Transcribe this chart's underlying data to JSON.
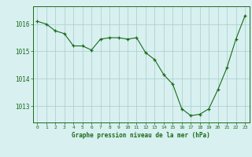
{
  "hours": [
    0,
    1,
    2,
    3,
    4,
    5,
    6,
    7,
    8,
    9,
    10,
    11,
    12,
    13,
    14,
    15,
    16,
    17,
    18,
    19,
    20,
    21,
    22,
    23
  ],
  "pressure": [
    1016.1,
    1016.0,
    1015.75,
    1015.65,
    1015.2,
    1015.2,
    1015.05,
    1015.45,
    1015.5,
    1015.5,
    1015.45,
    1015.5,
    1014.95,
    1014.7,
    1014.15,
    1013.8,
    1012.9,
    1012.65,
    1012.7,
    1012.9,
    1013.6,
    1014.4,
    1015.45,
    1016.3
  ],
  "line_color": "#1a6b1a",
  "marker_color": "#1a6b1a",
  "bg_color": "#d8f0f0",
  "grid_color": "#aacccc",
  "xlabel": "Graphe pression niveau de la mer (hPa)",
  "xlabel_color": "#1a6b1a",
  "tick_color": "#1a6b1a",
  "yticks": [
    1013,
    1014,
    1015,
    1016
  ],
  "ylim": [
    1012.4,
    1016.65
  ],
  "xlim": [
    -0.5,
    23.5
  ]
}
